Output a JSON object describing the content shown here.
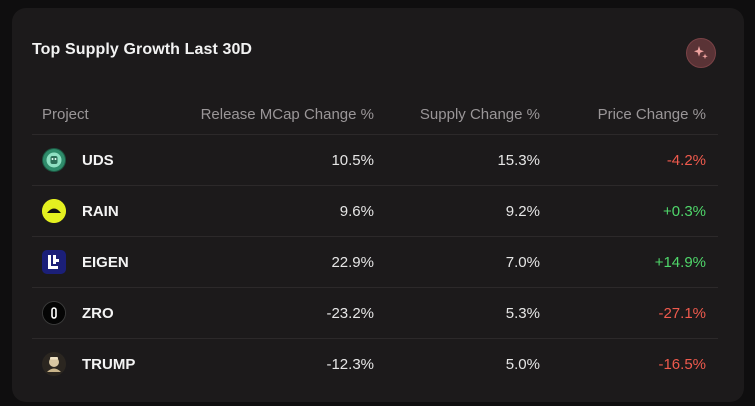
{
  "widget": {
    "title": "Top Supply Growth Last 30D"
  },
  "table": {
    "headers": {
      "project": "Project",
      "mcap": "Release MCap Change %",
      "supply": "Supply Change %",
      "price": "Price Change %"
    },
    "rows": [
      {
        "project": "UDS",
        "logo_icon": "uds-logo-icon",
        "mcap": "10.5%",
        "supply": "15.3%",
        "price": "-4.2%",
        "price_dir": "neg"
      },
      {
        "project": "RAIN",
        "logo_icon": "rain-logo-icon",
        "mcap": "9.6%",
        "supply": "9.2%",
        "price": "+0.3%",
        "price_dir": "pos"
      },
      {
        "project": "EIGEN",
        "logo_icon": "eigen-logo-icon",
        "mcap": "22.9%",
        "supply": "7.0%",
        "price": "+14.9%",
        "price_dir": "pos"
      },
      {
        "project": "ZRO",
        "logo_icon": "zro-logo-icon",
        "mcap": "-23.2%",
        "supply": "5.3%",
        "price": "-27.1%",
        "price_dir": "neg"
      },
      {
        "project": "TRUMP",
        "logo_icon": "trump-logo-icon",
        "mcap": "-12.3%",
        "supply": "5.0%",
        "price": "-16.5%",
        "price_dir": "neg"
      }
    ]
  },
  "colors": {
    "card_bg": "#1c1a1b",
    "page_bg": "#0f0e0f",
    "negative": "#ef5a4d",
    "positive": "#4fd66a",
    "header_text": "#9a9698",
    "ai_button": "#5a3336"
  }
}
